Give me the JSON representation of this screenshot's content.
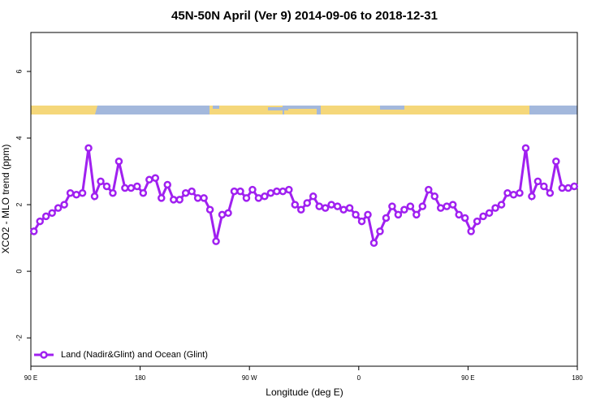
{
  "chart_data": {
    "type": "line",
    "title": "45N-50N April (Ver 9)   2014-09-06 to 2018-12-31",
    "x_label": "Longitude (deg E)",
    "y_label": "XCO2 - MLO trend (ppm)",
    "xlim": [
      90,
      540
    ],
    "ylim": [
      -2.85,
      7.17
    ],
    "xticks": [
      {
        "value": 90,
        "label": "90 E"
      },
      180,
      {
        "value": 270,
        "label": "90 W"
      },
      {
        "value": 360,
        "label": "0"
      },
      {
        "value": 450,
        "label": "90 E"
      },
      {
        "value": 540,
        "label": "180"
      }
    ],
    "yticks": [
      -2,
      0,
      2,
      4,
      6
    ],
    "legend": "bottom-left",
    "x": [
      92.5,
      97.5,
      102.5,
      107.5,
      112.5,
      117.5,
      122.5,
      127.5,
      132.5,
      137.5,
      142.5,
      147.5,
      152.5,
      157.5,
      162.5,
      167.5,
      172.5,
      177.5,
      182.5,
      187.5,
      192.5,
      197.5,
      202.5,
      207.5,
      212.5,
      217.5,
      222.5,
      227.5,
      232.5,
      237.5,
      242.5,
      247.5,
      252.5,
      257.5,
      262.5,
      267.5,
      272.5,
      277.5,
      282.5,
      287.5,
      292.5,
      297.5,
      302.5,
      307.5,
      312.5,
      317.5,
      322.5,
      327.5,
      332.5,
      337.5,
      342.5,
      347.5,
      352.5,
      357.5,
      362.5,
      367.5,
      372.5,
      377.5,
      382.5,
      387.5,
      392.5,
      397.5,
      402.5,
      407.5,
      412.5,
      417.5,
      422.5,
      427.5,
      432.5,
      437.5,
      442.5,
      447.5,
      452.5,
      457.5,
      462.5,
      467.5,
      472.5,
      477.5,
      482.5,
      487.5,
      492.5,
      497.5,
      502.5,
      507.5,
      512.5,
      517.5,
      522.5,
      527.5,
      532.5,
      537.5
    ],
    "series": [
      {
        "name": "Land (Nadir&Glint) and Ocean (Glint)",
        "color": "#a020f0",
        "values": [
          1.2,
          1.5,
          1.65,
          1.75,
          1.9,
          2.0,
          2.35,
          2.3,
          2.35,
          3.7,
          2.25,
          2.7,
          2.55,
          2.35,
          3.3,
          2.5,
          2.5,
          2.55,
          2.35,
          2.75,
          2.8,
          2.2,
          2.6,
          2.15,
          2.15,
          2.35,
          2.4,
          2.2,
          2.2,
          1.85,
          0.9,
          1.7,
          1.75,
          2.4,
          2.4,
          2.2,
          2.45,
          2.2,
          2.25,
          2.35,
          2.4,
          2.4,
          2.45,
          2.0,
          1.85,
          2.05,
          2.25,
          1.95,
          1.9,
          2.0,
          1.95,
          1.85,
          1.9,
          1.7,
          1.5,
          1.7,
          0.85,
          1.2,
          1.6,
          1.95,
          1.7,
          1.85,
          1.95,
          1.7,
          1.95,
          2.45,
          2.25,
          1.9,
          1.95,
          2.0,
          1.7,
          1.6,
          1.2,
          1.5,
          1.65,
          1.75,
          1.9,
          2.0,
          2.35,
          2.3,
          2.35,
          3.7,
          2.25,
          2.7,
          2.55,
          2.35,
          3.3,
          2.5,
          2.5,
          2.55
        ]
      }
    ]
  }
}
